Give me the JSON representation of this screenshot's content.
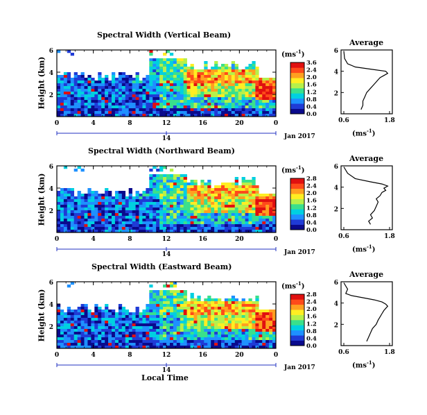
{
  "figure": {
    "xaxis_label": "Local Time",
    "date_label": "Jan 2017",
    "date_tick": "14",
    "x_ticks": [
      "0",
      "4",
      "8",
      "12",
      "16",
      "20",
      "0"
    ],
    "y_ticks": [
      "6",
      "4",
      "2"
    ],
    "cbar_units": "(ms",
    "cbar_units_sup": "-1",
    "cbar_units_close": ")",
    "avg_title": "Average",
    "avg_x_ticks": [
      "0.6",
      "1.8"
    ]
  },
  "chart_data": [
    {
      "type": "heatmap",
      "title": "Spectral Width (Vertical Beam)",
      "ylabel": "Height (km)",
      "xlabel": "Local Time",
      "x_range_hours": [
        0,
        24
      ],
      "ylim_km": [
        0,
        6
      ],
      "colorbar_ticks": [
        "3.6",
        "2.4",
        "2.0",
        "1.6",
        "1.2",
        "0.8",
        "0.4",
        "0.0"
      ],
      "colorscale": [
        "#0a0a8c",
        "#1f3bd6",
        "#1e90ff",
        "#00d0e0",
        "#3ae08c",
        "#b6f04a",
        "#ffee22",
        "#ffa020",
        "#ff4a1a",
        "#e01010"
      ],
      "description_values": "spectral width increases after 12 LT with maxima ~2.4-3.6 ms-1 in 1.5-4 km layer"
    },
    {
      "type": "line",
      "title": "Average",
      "xlabel": "(ms-1)",
      "xlim": [
        0.6,
        1.8
      ],
      "ylim": [
        0,
        6
      ],
      "x": [
        1.05,
        1.1,
        1.1,
        1.15,
        1.2,
        1.3,
        1.4,
        1.45,
        1.5,
        1.55,
        1.65,
        1.75,
        1.7,
        1.3,
        0.9,
        0.7,
        0.62,
        0.6
      ],
      "y": [
        0.4,
        0.8,
        1.2,
        1.6,
        2.0,
        2.4,
        2.8,
        3.0,
        3.2,
        3.4,
        3.6,
        3.8,
        4.0,
        4.2,
        4.4,
        4.7,
        5.2,
        5.9
      ]
    },
    {
      "type": "heatmap",
      "title": "Spectral Width (Northward Beam)",
      "ylabel": "Height (km)",
      "xlabel": "Local Time",
      "x_range_hours": [
        0,
        24
      ],
      "ylim_km": [
        0,
        6
      ],
      "colorbar_ticks": [
        "2.8",
        "2.4",
        "2.0",
        "1.6",
        "1.2",
        "0.8",
        "0.4",
        "0.0"
      ],
      "colorscale": [
        "#0a0a8c",
        "#1f3bd6",
        "#1e90ff",
        "#00d0e0",
        "#3ae08c",
        "#b6f04a",
        "#ffee22",
        "#ffa020",
        "#ff4a1a",
        "#e01010"
      ]
    },
    {
      "type": "line",
      "title": "Average",
      "xlabel": "(ms-1)",
      "xlim": [
        0.6,
        1.8
      ],
      "ylim": [
        0,
        6
      ],
      "x": [
        1.3,
        1.25,
        1.35,
        1.3,
        1.4,
        1.45,
        1.5,
        1.45,
        1.55,
        1.6,
        1.7,
        1.65,
        1.75,
        1.6,
        1.3,
        0.9,
        0.7,
        0.6
      ],
      "y": [
        0.5,
        0.8,
        1.1,
        1.4,
        1.8,
        2.2,
        2.6,
        2.9,
        3.2,
        3.5,
        3.7,
        3.9,
        4.1,
        4.3,
        4.5,
        4.8,
        5.3,
        5.9
      ]
    },
    {
      "type": "heatmap",
      "title": "Spectral Width (Eastward Beam)",
      "ylabel": "Height (km)",
      "xlabel": "Local Time",
      "x_range_hours": [
        0,
        24
      ],
      "ylim_km": [
        0,
        6
      ],
      "colorbar_ticks": [
        "2.8",
        "2.4",
        "2.0",
        "1.6",
        "1.2",
        "0.8",
        "0.4",
        "0.0"
      ],
      "colorscale": [
        "#0a0a8c",
        "#1f3bd6",
        "#1e90ff",
        "#00d0e0",
        "#3ae08c",
        "#b6f04a",
        "#ffee22",
        "#ffa020",
        "#ff4a1a",
        "#e01010"
      ]
    },
    {
      "type": "line",
      "title": "Average",
      "xlabel": "(ms-1)",
      "xlim": [
        0.6,
        1.8
      ],
      "ylim": [
        0,
        6
      ],
      "x": [
        1.2,
        1.25,
        1.3,
        1.35,
        1.45,
        1.5,
        1.55,
        1.6,
        1.65,
        1.7,
        1.75,
        1.7,
        1.6,
        1.4,
        1.1,
        0.8,
        0.65,
        0.7,
        0.6
      ],
      "y": [
        0.4,
        0.8,
        1.2,
        1.6,
        2.0,
        2.4,
        2.7,
        3.0,
        3.3,
        3.5,
        3.7,
        3.9,
        4.1,
        4.3,
        4.5,
        4.7,
        4.9,
        5.3,
        5.9
      ]
    }
  ]
}
